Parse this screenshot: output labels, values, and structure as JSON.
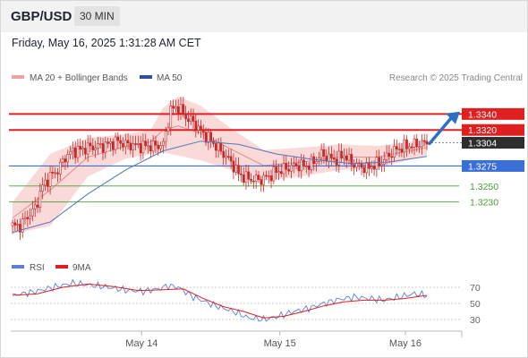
{
  "header": {
    "pair": "GBP/USD",
    "timeframe": "30 MIN"
  },
  "datetime": "Friday, May 16, 2025 1:31:28 AM CET",
  "legend": {
    "ma20_bb": "MA 20 + Bollinger Bands",
    "ma50": "MA 50",
    "rsi": "RSI",
    "ma9": "9MA",
    "copyright": "Research © 2025 Trading Central"
  },
  "colors": {
    "candle": "#c62828",
    "resistance": "#e02020",
    "support": "#3b6fd8",
    "target": "#4a9b3a",
    "bollinger_fill": "#f8c9c9",
    "ma20": "#e88a8a",
    "ma50": "#5575b8",
    "rsi": "#5b7fd8",
    "rsi_ma": "#e02020",
    "arrow": "#2f6fc2",
    "current_price_bg": "#2e2e2e"
  },
  "chart_data": {
    "type": "candlestick",
    "instrument": "GBP/USD",
    "interval": "30 MIN",
    "x_tick_labels": [
      "May 14",
      "May 15",
      "May 16"
    ],
    "y_range": [
      1.3186,
      1.3365
    ],
    "levels": [
      {
        "value": 1.334,
        "label": "1.3340",
        "kind": "resistance"
      },
      {
        "value": 1.332,
        "label": "1.3320",
        "kind": "resistance"
      },
      {
        "value": 1.3304,
        "label": "1.3304",
        "kind": "last_price"
      },
      {
        "value": 1.3275,
        "label": "1.3275",
        "kind": "pivot"
      },
      {
        "value": 1.325,
        "label": "1.3250",
        "kind": "support"
      },
      {
        "value": 1.323,
        "label": "1.3230",
        "kind": "support"
      }
    ],
    "close_path": [
      [
        0,
        1.32
      ],
      [
        3,
        1.32
      ],
      [
        6,
        1.3212
      ],
      [
        9,
        1.3222
      ],
      [
        12,
        1.325
      ],
      [
        15,
        1.3262
      ],
      [
        18,
        1.327
      ],
      [
        21,
        1.3286
      ],
      [
        24,
        1.3294
      ],
      [
        27,
        1.3295
      ],
      [
        30,
        1.3298
      ],
      [
        33,
        1.3299
      ],
      [
        36,
        1.33
      ],
      [
        39,
        1.3303
      ],
      [
        42,
        1.3306
      ],
      [
        45,
        1.3302
      ],
      [
        48,
        1.3301
      ],
      [
        51,
        1.33
      ],
      [
        54,
        1.33
      ],
      [
        57,
        1.33
      ],
      [
        60,
        1.3302
      ],
      [
        63,
        1.3345
      ],
      [
        66,
        1.3349
      ],
      [
        69,
        1.3336
      ],
      [
        72,
        1.333
      ],
      [
        75,
        1.3318
      ],
      [
        78,
        1.331
      ],
      [
        81,
        1.33
      ],
      [
        84,
        1.329
      ],
      [
        87,
        1.328
      ],
      [
        90,
        1.3265
      ],
      [
        93,
        1.326
      ],
      [
        96,
        1.3258
      ],
      [
        99,
        1.3258
      ],
      [
        102,
        1.3262
      ],
      [
        105,
        1.3268
      ],
      [
        108,
        1.3271
      ],
      [
        111,
        1.3274
      ],
      [
        114,
        1.3276
      ],
      [
        117,
        1.3275
      ],
      [
        120,
        1.328
      ],
      [
        123,
        1.329
      ],
      [
        126,
        1.3285
      ],
      [
        129,
        1.3283
      ],
      [
        132,
        1.3289
      ],
      [
        135,
        1.3279
      ],
      [
        138,
        1.3275
      ],
      [
        141,
        1.3272
      ],
      [
        144,
        1.3276
      ],
      [
        147,
        1.328
      ],
      [
        150,
        1.3289
      ],
      [
        153,
        1.3296
      ],
      [
        156,
        1.3299
      ],
      [
        159,
        1.3301
      ],
      [
        162,
        1.3303
      ],
      [
        165,
        1.3304
      ]
    ],
    "ma50": [
      [
        0,
        1.3192
      ],
      [
        15,
        1.3205
      ],
      [
        30,
        1.324
      ],
      [
        45,
        1.327
      ],
      [
        60,
        1.3294
      ],
      [
        75,
        1.3306
      ],
      [
        90,
        1.3302
      ],
      [
        105,
        1.329
      ],
      [
        120,
        1.3283
      ],
      [
        135,
        1.3278
      ],
      [
        150,
        1.328
      ],
      [
        165,
        1.3287
      ]
    ],
    "bollinger": {
      "upper": [
        [
          0,
          1.323
        ],
        [
          15,
          1.329
        ],
        [
          30,
          1.331
        ],
        [
          45,
          1.3315
        ],
        [
          55,
          1.332
        ],
        [
          60,
          1.3348
        ],
        [
          66,
          1.3362
        ],
        [
          75,
          1.335
        ],
        [
          87,
          1.3322
        ],
        [
          100,
          1.3295
        ],
        [
          115,
          1.3298
        ],
        [
          130,
          1.3302
        ],
        [
          145,
          1.33
        ],
        [
          165,
          1.3308
        ]
      ],
      "lower": [
        [
          0,
          1.319
        ],
        [
          15,
          1.32
        ],
        [
          30,
          1.3262
        ],
        [
          45,
          1.3284
        ],
        [
          55,
          1.329
        ],
        [
          60,
          1.3292
        ],
        [
          66,
          1.3288
        ],
        [
          75,
          1.3282
        ],
        [
          87,
          1.327
        ],
        [
          100,
          1.3256
        ],
        [
          115,
          1.3262
        ],
        [
          130,
          1.327
        ],
        [
          145,
          1.3272
        ],
        [
          165,
          1.3288
        ]
      ]
    },
    "rsi": {
      "y_range": [
        20,
        80
      ],
      "y_ticks": [
        30,
        50,
        70
      ],
      "rsi": [
        [
          0,
          60
        ],
        [
          8,
          64
        ],
        [
          16,
          70
        ],
        [
          24,
          75
        ],
        [
          30,
          73
        ],
        [
          38,
          70
        ],
        [
          46,
          66
        ],
        [
          52,
          65
        ],
        [
          58,
          68
        ],
        [
          62,
          72
        ],
        [
          66,
          70
        ],
        [
          72,
          58
        ],
        [
          80,
          48
        ],
        [
          88,
          40
        ],
        [
          94,
          32
        ],
        [
          100,
          30
        ],
        [
          106,
          34
        ],
        [
          112,
          40
        ],
        [
          118,
          44
        ],
        [
          124,
          50
        ],
        [
          130,
          55
        ],
        [
          136,
          58
        ],
        [
          142,
          56
        ],
        [
          148,
          54
        ],
        [
          154,
          58
        ],
        [
          160,
          62
        ],
        [
          165,
          60
        ]
      ],
      "ma9": [
        [
          0,
          60
        ],
        [
          10,
          62
        ],
        [
          20,
          70
        ],
        [
          30,
          74
        ],
        [
          40,
          71
        ],
        [
          50,
          66
        ],
        [
          60,
          67
        ],
        [
          68,
          68
        ],
        [
          76,
          56
        ],
        [
          84,
          46
        ],
        [
          92,
          40
        ],
        [
          100,
          32
        ],
        [
          108,
          34
        ],
        [
          116,
          40
        ],
        [
          124,
          47
        ],
        [
          132,
          52
        ],
        [
          140,
          54
        ],
        [
          148,
          54
        ],
        [
          156,
          56
        ],
        [
          165,
          60
        ]
      ]
    }
  }
}
